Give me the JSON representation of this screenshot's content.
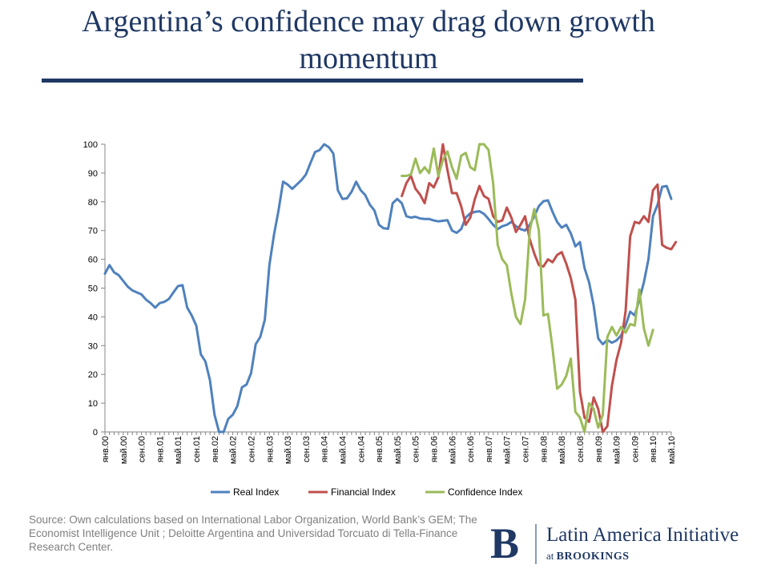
{
  "slide": {
    "title": "Argentina’s confidence may drag down growth momentum",
    "source": "Source: Own calculations based on International Labor Organization, World Bank’s GEM; The Economist Intelligence Unit ; Deloitte Argentina and Universidad Torcuato di Tella-Finance Research Center.",
    "logo": {
      "letter": "B",
      "name": "Latin America Initiative",
      "sub_prefix": "at",
      "sub_org": "BROOKINGS"
    },
    "colors": {
      "title": "#1f3864",
      "real": "#4f81bd",
      "financial": "#c0504d",
      "confidence": "#9bbb59"
    }
  },
  "chart_data": {
    "type": "line",
    "title": "",
    "xlabel": "",
    "ylabel": "",
    "ylim": [
      0,
      100
    ],
    "yticks": [
      0,
      10,
      20,
      30,
      40,
      50,
      60,
      70,
      80,
      90,
      100
    ],
    "grid": false,
    "legend": "bottom",
    "x_tick_labels": [
      "янв.00",
      "май.00",
      "сен.00",
      "янв.01",
      "май.01",
      "сен.01",
      "янв.02",
      "май.02",
      "сен.02",
      "янв.03",
      "май.03",
      "сен.03",
      "янв.04",
      "май.04",
      "сен.04",
      "янв.05",
      "май.05",
      "сен.05",
      "янв.06",
      "май.06",
      "сен.06",
      "янв.07",
      "май.07",
      "сен.07",
      "янв.08",
      "май.08",
      "сен.08",
      "янв.09",
      "май.09",
      "сен.09",
      "янв.10",
      "май.10"
    ],
    "months": 125,
    "series": [
      {
        "name": "Real Index",
        "color": "#4f81bd",
        "start": 0,
        "values": [
          55,
          58,
          55.5,
          54.5,
          52.5,
          50.5,
          49.2,
          48.5,
          47.8,
          46,
          44.8,
          43.2,
          44.8,
          45.2,
          46.2,
          48.5,
          50.7,
          51,
          43.3,
          40.5,
          37,
          27,
          24.5,
          18,
          6,
          0,
          0,
          4.5,
          6,
          9,
          15.5,
          16.5,
          20.5,
          30.5,
          33,
          39,
          58,
          68.5,
          77,
          87,
          86,
          84.5,
          86,
          87.5,
          89.5,
          93.5,
          97.3,
          98,
          100,
          99,
          96.8,
          84,
          81,
          81.2,
          83.5,
          87,
          84,
          82.3,
          79,
          77,
          72,
          70.8,
          70.6,
          79.5,
          81,
          79.5,
          75,
          74.5,
          74.8,
          74.2,
          74,
          74,
          73.5,
          73.2,
          73.4,
          73.6,
          70,
          69.2,
          70.5,
          74.5,
          76,
          76.5,
          76.7,
          75.8,
          74,
          72,
          70.5,
          71.5,
          72,
          73,
          71.5,
          70.5,
          70,
          72,
          75,
          78.5,
          80.2,
          80.5,
          76.5,
          73,
          71,
          72,
          69,
          64.5,
          66,
          57,
          52,
          44,
          32.5,
          30.5,
          32,
          31,
          31.8,
          33.5,
          37,
          41.8,
          40.5,
          46,
          52,
          60,
          75,
          79,
          85.2,
          85.5,
          81
        ]
      },
      {
        "name": "Financial Index",
        "color": "#c0504d",
        "start": 65,
        "values": [
          82,
          86.5,
          89,
          84.5,
          82.5,
          79.5,
          86.5,
          85,
          88.5,
          100,
          91,
          83,
          83,
          78.5,
          72,
          74.5,
          81,
          85.5,
          82,
          81,
          75,
          73,
          73.5,
          78,
          74.5,
          69.5,
          72,
          75,
          67,
          62,
          58,
          57.5,
          60,
          59,
          61.5,
          62.5,
          58.5,
          53.5,
          46,
          14,
          5,
          3.5,
          12,
          8,
          0,
          2,
          16,
          25,
          31,
          42,
          68,
          73,
          72.5,
          75,
          73,
          84,
          86,
          65,
          64,
          63.5,
          66
        ]
      },
      {
        "name": "Confidence Index",
        "color": "#9bbb59",
        "start": 65,
        "values": [
          89,
          89,
          89.5,
          95,
          90,
          92,
          90,
          98.5,
          89,
          94.5,
          97.5,
          92,
          88,
          96,
          97,
          92,
          91,
          100,
          100,
          98,
          86.5,
          65,
          60,
          58,
          48,
          40,
          37.5,
          46,
          70,
          77.5,
          70,
          40.5,
          41,
          29,
          15,
          16.5,
          19.5,
          25.5,
          7,
          5,
          0,
          10,
          8,
          1.5,
          6,
          33,
          36.5,
          33.5,
          36.5,
          34.5,
          37.5,
          37,
          49.5,
          36,
          30,
          35.5
        ]
      }
    ]
  }
}
